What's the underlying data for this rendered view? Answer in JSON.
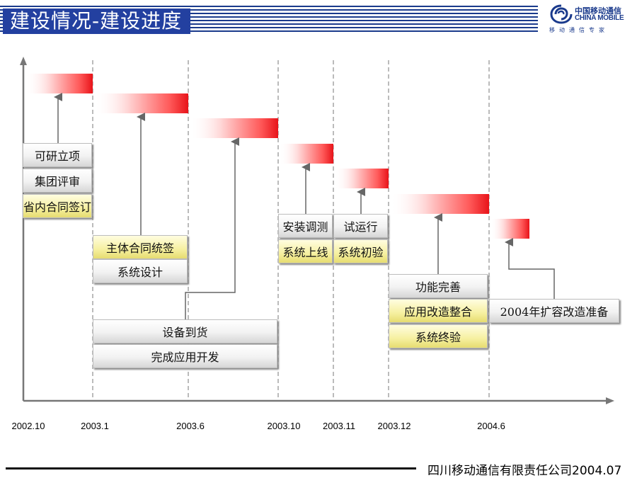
{
  "header": {
    "title": "建设情况-建设进度"
  },
  "logo": {
    "cn": "中国移动通信",
    "en": "CHINA MOBILE",
    "slogan": "移动通信专家"
  },
  "footer": {
    "text": "四川移动通信有限责任公司2004.07"
  },
  "timeline": {
    "ticks": [
      "2002.10",
      "2003.1",
      "2003.6",
      "2003.10",
      "2003.11",
      "2003.12",
      "2004.6"
    ]
  },
  "phases": [
    {
      "items": [
        {
          "label": "可研立项",
          "style": "gray"
        },
        {
          "label": "集团评审",
          "style": "gray"
        },
        {
          "label": "省内合同签订",
          "style": "yellow"
        }
      ]
    },
    {
      "items": [
        {
          "label": "主体合同统签",
          "style": "yellow"
        },
        {
          "label": "系统设计",
          "style": "gray"
        }
      ]
    },
    {
      "items": [
        {
          "label": "设备到货",
          "style": "gray"
        },
        {
          "label": "完成应用开发",
          "style": "gray"
        }
      ]
    },
    {
      "items": [
        {
          "label": "安装调测",
          "style": "gray"
        },
        {
          "label": "系统上线",
          "style": "yellow"
        }
      ]
    },
    {
      "items": [
        {
          "label": "试运行",
          "style": "gray"
        },
        {
          "label": "系统初验",
          "style": "yellow"
        }
      ]
    },
    {
      "items": [
        {
          "label": "功能完善",
          "style": "gray"
        },
        {
          "label": "应用改造整合",
          "style": "yellow"
        },
        {
          "label": "系统终验",
          "style": "yellow"
        }
      ]
    },
    {
      "items": [
        {
          "label": "2004年扩容改造准备",
          "style": "gray"
        }
      ]
    }
  ],
  "colors": {
    "bar_red": "#e8141a",
    "title_bg": "#2340a0",
    "accent_blue": "#1a3a8c"
  }
}
